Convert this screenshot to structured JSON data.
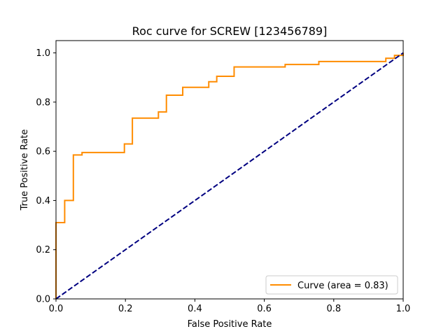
{
  "chart_data": {
    "type": "line",
    "title": "Roc curve for SCREW [123456789]",
    "xlabel": "False Positive Rate",
    "ylabel": "True Positive Rate",
    "xlim": [
      0.0,
      1.0
    ],
    "ylim": [
      0.0,
      1.05
    ],
    "xticks": [
      0.0,
      0.2,
      0.4,
      0.6,
      0.8,
      1.0
    ],
    "yticks": [
      0.0,
      0.2,
      0.4,
      0.6,
      0.8,
      1.0
    ],
    "xtick_labels": [
      "0.0",
      "0.2",
      "0.4",
      "0.6",
      "0.8",
      "1.0"
    ],
    "ytick_labels": [
      "0.0",
      "0.2",
      "0.4",
      "0.6",
      "0.8",
      "1.0"
    ],
    "grid": false,
    "legend_position": "lower-right",
    "series": [
      {
        "name": "Curve (area = 0.83)",
        "color": "#ff8c00",
        "style": "solid",
        "in_legend": true,
        "x": [
          0.0,
          0.0,
          0.0,
          0.025,
          0.025,
          0.05,
          0.05,
          0.075,
          0.075,
          0.197,
          0.197,
          0.22,
          0.22,
          0.295,
          0.295,
          0.318,
          0.318,
          0.365,
          0.365,
          0.44,
          0.44,
          0.463,
          0.463,
          0.513,
          0.513,
          0.66,
          0.66,
          0.757,
          0.757,
          0.95,
          0.95,
          0.975,
          0.975,
          1.0,
          1.0
        ],
        "y": [
          0.0,
          0.31,
          0.31,
          0.31,
          0.4,
          0.4,
          0.585,
          0.585,
          0.595,
          0.595,
          0.63,
          0.63,
          0.735,
          0.735,
          0.76,
          0.76,
          0.828,
          0.828,
          0.86,
          0.86,
          0.883,
          0.883,
          0.905,
          0.905,
          0.943,
          0.943,
          0.953,
          0.953,
          0.965,
          0.965,
          0.978,
          0.978,
          0.99,
          0.99,
          1.0
        ]
      },
      {
        "name": "Chance",
        "color": "#000080",
        "style": "dashed",
        "in_legend": false,
        "x": [
          0.0,
          1.0
        ],
        "y": [
          0.0,
          1.0
        ]
      }
    ]
  }
}
